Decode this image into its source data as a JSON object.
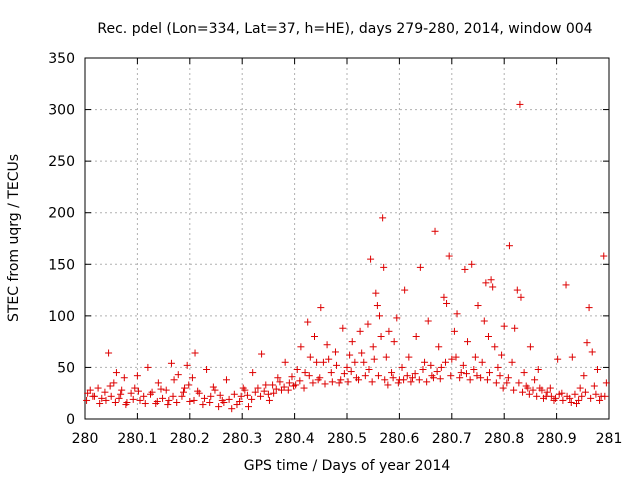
{
  "chart_data": {
    "type": "scatter",
    "title": "Rec. pdel (Lon=334, Lat=37, h=HE), days 279-280, 2014, window 004",
    "xlabel": "GPS time / Days of year 2014",
    "ylabel": "STEC from uqrg / TECUs",
    "xlim": [
      280,
      281
    ],
    "ylim": [
      0,
      350
    ],
    "xticks": [
      280,
      280.1,
      280.2,
      280.3,
      280.4,
      280.5,
      280.6,
      280.7,
      280.8,
      280.9,
      281
    ],
    "xtick_labels": [
      "280",
      "280.1",
      "280.2",
      "280.3",
      "280.4",
      "280.5",
      "280.6",
      "280.7",
      "280.8",
      "280.9",
      "281"
    ],
    "yticks": [
      0,
      50,
      100,
      150,
      200,
      250,
      300,
      350
    ],
    "ytick_labels": [
      "0",
      "50",
      "100",
      "150",
      "200",
      "250",
      "300",
      "350"
    ],
    "grid": true,
    "marker": "+",
    "color": "#dd0000",
    "series": [
      {
        "name": "STEC",
        "points": [
          [
            280.005,
            25
          ],
          [
            280.01,
            28
          ],
          [
            280.018,
            22
          ],
          [
            280.025,
            30
          ],
          [
            280.032,
            20
          ],
          [
            280.04,
            18
          ],
          [
            280.045,
            64
          ],
          [
            280.05,
            22
          ],
          [
            280.055,
            35
          ],
          [
            280.06,
            45
          ],
          [
            280.065,
            20
          ],
          [
            280.07,
            28
          ],
          [
            280.075,
            40
          ],
          [
            280.08,
            16
          ],
          [
            280.088,
            25
          ],
          [
            280.095,
            30
          ],
          [
            280.1,
            42
          ],
          [
            280.105,
            18
          ],
          [
            280.112,
            22
          ],
          [
            280.12,
            50
          ],
          [
            280.128,
            26
          ],
          [
            280.135,
            15
          ],
          [
            280.14,
            35
          ],
          [
            280.148,
            20
          ],
          [
            280.155,
            28
          ],
          [
            280.16,
            18
          ],
          [
            280.165,
            54
          ],
          [
            280.17,
            38
          ],
          [
            280.178,
            43
          ],
          [
            280.185,
            22
          ],
          [
            280.19,
            30
          ],
          [
            280.195,
            52
          ],
          [
            280.2,
            17
          ],
          [
            280.205,
            40
          ],
          [
            280.21,
            64
          ],
          [
            280.218,
            25
          ],
          [
            280.225,
            14
          ],
          [
            280.232,
            48
          ],
          [
            280.24,
            22
          ],
          [
            280.248,
            28
          ],
          [
            280.255,
            12
          ],
          [
            280.262,
            18
          ],
          [
            280.27,
            38
          ],
          [
            280.28,
            10
          ],
          [
            280.29,
            14
          ],
          [
            280.298,
            22
          ],
          [
            280.305,
            28
          ],
          [
            280.312,
            12
          ],
          [
            280.32,
            45
          ],
          [
            280.33,
            30
          ],
          [
            280.337,
            63
          ],
          [
            280.345,
            33
          ],
          [
            280.352,
            18
          ],
          [
            280.36,
            25
          ],
          [
            280.368,
            40
          ],
          [
            280.375,
            28
          ],
          [
            280.382,
            55
          ],
          [
            280.39,
            35
          ],
          [
            280.398,
            32
          ],
          [
            280.405,
            48
          ],
          [
            280.412,
            70
          ],
          [
            280.42,
            45
          ],
          [
            280.425,
            94
          ],
          [
            280.43,
            60
          ],
          [
            280.438,
            80
          ],
          [
            280.445,
            38
          ],
          [
            280.45,
            108
          ],
          [
            280.455,
            55
          ],
          [
            280.462,
            72
          ],
          [
            280.47,
            45
          ],
          [
            280.478,
            65
          ],
          [
            280.485,
            35
          ],
          [
            280.492,
            88
          ],
          [
            280.5,
            50
          ],
          [
            280.505,
            62
          ],
          [
            280.51,
            75
          ],
          [
            280.518,
            40
          ],
          [
            280.525,
            85
          ],
          [
            280.532,
            55
          ],
          [
            280.54,
            92
          ],
          [
            280.545,
            155
          ],
          [
            280.55,
            70
          ],
          [
            280.555,
            122
          ],
          [
            280.558,
            110
          ],
          [
            280.562,
            100
          ],
          [
            280.565,
            80
          ],
          [
            280.568,
            195
          ],
          [
            280.57,
            147
          ],
          [
            280.575,
            60
          ],
          [
            280.58,
            85
          ],
          [
            280.585,
            45
          ],
          [
            280.59,
            75
          ],
          [
            280.595,
            98
          ],
          [
            280.6,
            38
          ],
          [
            280.605,
            50
          ],
          [
            280.61,
            125
          ],
          [
            280.618,
            60
          ],
          [
            280.625,
            40
          ],
          [
            280.632,
            80
          ],
          [
            280.64,
            147
          ],
          [
            280.648,
            55
          ],
          [
            280.655,
            95
          ],
          [
            280.662,
            42
          ],
          [
            280.668,
            182
          ],
          [
            280.675,
            70
          ],
          [
            280.68,
            50
          ],
          [
            280.685,
            118
          ],
          [
            280.69,
            112
          ],
          [
            280.695,
            158
          ],
          [
            280.7,
            58
          ],
          [
            280.705,
            85
          ],
          [
            280.71,
            102
          ],
          [
            280.718,
            45
          ],
          [
            280.725,
            145
          ],
          [
            280.73,
            75
          ],
          [
            280.738,
            150
          ],
          [
            280.745,
            60
          ],
          [
            280.75,
            110
          ],
          [
            280.755,
            40
          ],
          [
            280.762,
            95
          ],
          [
            280.765,
            132
          ],
          [
            280.77,
            80
          ],
          [
            280.775,
            135
          ],
          [
            280.778,
            128
          ],
          [
            280.782,
            70
          ],
          [
            280.788,
            50
          ],
          [
            280.795,
            62
          ],
          [
            280.8,
            90
          ],
          [
            280.805,
            35
          ],
          [
            280.81,
            168
          ],
          [
            280.815,
            55
          ],
          [
            280.82,
            88
          ],
          [
            280.825,
            125
          ],
          [
            280.83,
            305
          ],
          [
            280.832,
            118
          ],
          [
            280.838,
            45
          ],
          [
            280.845,
            30
          ],
          [
            280.85,
            70
          ],
          [
            280.858,
            38
          ],
          [
            280.865,
            48
          ],
          [
            280.872,
            28
          ],
          [
            280.88,
            22
          ],
          [
            280.888,
            30
          ],
          [
            280.895,
            18
          ],
          [
            280.902,
            58
          ],
          [
            280.91,
            25
          ],
          [
            280.918,
            130
          ],
          [
            280.925,
            20
          ],
          [
            280.93,
            60
          ],
          [
            280.938,
            15
          ],
          [
            280.945,
            30
          ],
          [
            280.952,
            42
          ],
          [
            280.958,
            74
          ],
          [
            280.962,
            108
          ],
          [
            280.968,
            65
          ],
          [
            280.972,
            32
          ],
          [
            280.978,
            48
          ],
          [
            280.985,
            22
          ],
          [
            280.99,
            158
          ],
          [
            280.995,
            35
          ],
          [
            280.003,
            18
          ],
          [
            280.015,
            22
          ],
          [
            280.028,
            15
          ],
          [
            280.038,
            26
          ],
          [
            280.048,
            32
          ],
          [
            280.058,
            16
          ],
          [
            280.068,
            24
          ],
          [
            280.078,
            14
          ],
          [
            280.092,
            19
          ],
          [
            280.102,
            27
          ],
          [
            280.115,
            15
          ],
          [
            280.125,
            24
          ],
          [
            280.138,
            17
          ],
          [
            280.145,
            29
          ],
          [
            280.158,
            14
          ],
          [
            280.168,
            22
          ],
          [
            280.175,
            16
          ],
          [
            280.188,
            26
          ],
          [
            280.198,
            33
          ],
          [
            280.208,
            18
          ],
          [
            280.215,
            27
          ],
          [
            280.228,
            20
          ],
          [
            280.238,
            16
          ],
          [
            280.245,
            31
          ],
          [
            280.258,
            23
          ],
          [
            280.265,
            16
          ],
          [
            280.275,
            19
          ],
          [
            280.285,
            24
          ],
          [
            280.295,
            17
          ],
          [
            280.302,
            30
          ],
          [
            280.31,
            23
          ],
          [
            280.318,
            19
          ],
          [
            280.325,
            26
          ],
          [
            280.335,
            22
          ],
          [
            280.342,
            27
          ],
          [
            280.35,
            24
          ],
          [
            280.358,
            33
          ],
          [
            280.365,
            29
          ],
          [
            280.372,
            36
          ],
          [
            280.38,
            31
          ],
          [
            280.388,
            28
          ],
          [
            280.395,
            41
          ],
          [
            280.402,
            33
          ],
          [
            280.41,
            37
          ],
          [
            280.418,
            30
          ],
          [
            280.428,
            42
          ],
          [
            280.435,
            35
          ],
          [
            280.442,
            55
          ],
          [
            280.448,
            40
          ],
          [
            280.458,
            34
          ],
          [
            280.465,
            58
          ],
          [
            280.472,
            36
          ],
          [
            280.48,
            52
          ],
          [
            280.488,
            38
          ],
          [
            280.495,
            44
          ],
          [
            280.502,
            36
          ],
          [
            280.508,
            46
          ],
          [
            280.515,
            55
          ],
          [
            280.522,
            38
          ],
          [
            280.528,
            64
          ],
          [
            280.535,
            42
          ],
          [
            280.542,
            48
          ],
          [
            280.548,
            36
          ],
          [
            280.552,
            58
          ],
          [
            280.56,
            42
          ],
          [
            280.572,
            38
          ],
          [
            280.578,
            33
          ],
          [
            280.588,
            40
          ],
          [
            280.598,
            35
          ],
          [
            280.608,
            38
          ],
          [
            280.615,
            42
          ],
          [
            280.622,
            36
          ],
          [
            280.63,
            44
          ],
          [
            280.638,
            38
          ],
          [
            280.645,
            48
          ],
          [
            280.652,
            36
          ],
          [
            280.66,
            52
          ],
          [
            280.665,
            40
          ],
          [
            280.672,
            46
          ],
          [
            280.678,
            39
          ],
          [
            280.688,
            55
          ],
          [
            280.698,
            42
          ],
          [
            280.708,
            60
          ],
          [
            280.715,
            40
          ],
          [
            280.722,
            52
          ],
          [
            280.728,
            44
          ],
          [
            280.735,
            38
          ],
          [
            280.742,
            48
          ],
          [
            280.748,
            42
          ],
          [
            280.758,
            55
          ],
          [
            280.768,
            38
          ],
          [
            280.772,
            45
          ],
          [
            280.785,
            35
          ],
          [
            280.792,
            42
          ],
          [
            280.798,
            30
          ],
          [
            280.808,
            40
          ],
          [
            280.818,
            28
          ],
          [
            280.828,
            35
          ],
          [
            280.835,
            26
          ],
          [
            280.842,
            32
          ],
          [
            280.848,
            24
          ],
          [
            280.855,
            28
          ],
          [
            280.862,
            22
          ],
          [
            280.868,
            30
          ],
          [
            280.875,
            20
          ],
          [
            280.882,
            26
          ],
          [
            280.89,
            22
          ],
          [
            280.898,
            20
          ],
          [
            280.905,
            24
          ],
          [
            280.912,
            18
          ],
          [
            280.92,
            22
          ],
          [
            280.928,
            16
          ],
          [
            280.935,
            24
          ],
          [
            280.942,
            18
          ],
          [
            280.948,
            22
          ],
          [
            280.955,
            26
          ],
          [
            280.965,
            20
          ],
          [
            280.975,
            24
          ],
          [
            280.982,
            18
          ],
          [
            280.992,
            22
          ]
        ]
      }
    ]
  }
}
